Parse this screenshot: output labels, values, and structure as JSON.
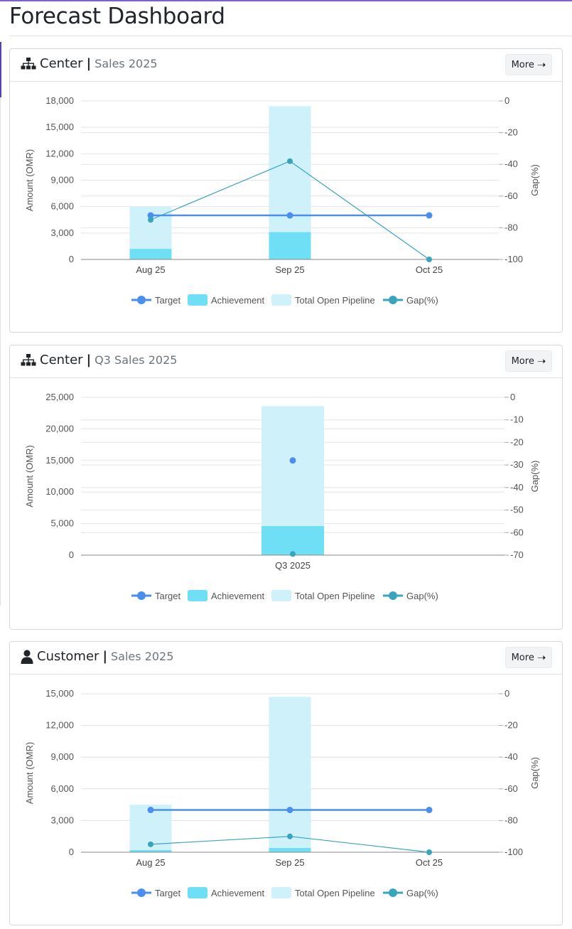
{
  "page": {
    "title": "Forecast Dashboard"
  },
  "legend_labels": [
    "Target",
    "Achievement",
    "Total Open Pipeline",
    "Gap(%)"
  ],
  "more_label": "More",
  "colors": {
    "target": "#4a8ff0",
    "achievement": "#6fdff6",
    "pipeline": "#cff2fa",
    "gap": "#3aa4bd",
    "grid": "#e3e5e8",
    "axis": "#999999"
  },
  "cards": [
    {
      "icon": "sitemap-icon",
      "title": "Center",
      "subtitle": "Sales 2025",
      "chart_data": {
        "type": "bar",
        "categories": [
          "Aug 25",
          "Sep 25",
          "Oct 25"
        ],
        "ylabel": "Amount (OMR)",
        "y2label": "Gap(%)",
        "ylim": [
          0,
          18000
        ],
        "y_ticks": [
          0,
          3000,
          6000,
          9000,
          12000,
          15000,
          18000
        ],
        "y_tick_labels": [
          "0",
          "3,000",
          "6,000",
          "9,000",
          "12,000",
          "15,000",
          "18,000"
        ],
        "y2lim": [
          -100,
          0
        ],
        "y2_ticks": [
          0,
          -20,
          -40,
          -60,
          -80,
          -100
        ],
        "y2_tick_labels": [
          "0",
          "-20",
          "-40",
          "-60",
          "-80",
          "-100"
        ],
        "series": [
          {
            "name": "Target",
            "type": "line",
            "values": [
              5000,
              5000,
              5000
            ]
          },
          {
            "name": "Achievement",
            "type": "bar",
            "values": [
              1200,
              3100,
              0
            ]
          },
          {
            "name": "Total Open Pipeline",
            "type": "bar",
            "stacked": true,
            "values": [
              6000,
              17400,
              0
            ]
          },
          {
            "name": "Gap(%)",
            "type": "line",
            "axis": "right",
            "values": [
              -75,
              -38,
              -100
            ]
          }
        ],
        "legend": "bottom"
      }
    },
    {
      "icon": "sitemap-icon",
      "title": "Center",
      "subtitle": "Q3 Sales 2025",
      "chart_data": {
        "type": "bar",
        "categories": [
          "Q3 2025"
        ],
        "ylabel": "Amount (OMR)",
        "y2label": "Gap(%)",
        "ylim": [
          0,
          25000
        ],
        "y_ticks": [
          0,
          5000,
          10000,
          15000,
          20000,
          25000
        ],
        "y_tick_labels": [
          "0",
          "5,000",
          "10,000",
          "15,000",
          "20,000",
          "25,000"
        ],
        "y2lim": [
          -70,
          0
        ],
        "y2_ticks": [
          0,
          -10,
          -20,
          -30,
          -40,
          -50,
          -60,
          -70
        ],
        "y2_tick_labels": [
          "0",
          "-10",
          "-20",
          "-30",
          "-40",
          "-50",
          "-60",
          "-70"
        ],
        "series": [
          {
            "name": "Target",
            "type": "line",
            "values": [
              15000
            ]
          },
          {
            "name": "Achievement",
            "type": "bar",
            "values": [
              4600
            ]
          },
          {
            "name": "Total Open Pipeline",
            "type": "bar",
            "stacked": true,
            "values": [
              23600
            ]
          },
          {
            "name": "Gap(%)",
            "type": "line",
            "axis": "right",
            "values": [
              -69.5
            ]
          }
        ],
        "legend": "bottom"
      }
    },
    {
      "icon": "user-icon",
      "title": "Customer",
      "subtitle": "Sales 2025",
      "chart_data": {
        "type": "bar",
        "categories": [
          "Aug 25",
          "Sep 25",
          "Oct 25"
        ],
        "ylabel": "Amount (OMR)",
        "y2label": "Gap(%)",
        "ylim": [
          0,
          15000
        ],
        "y_ticks": [
          0,
          3000,
          6000,
          9000,
          12000,
          15000
        ],
        "y_tick_labels": [
          "0",
          "3,000",
          "6,000",
          "9,000",
          "12,000",
          "15,000"
        ],
        "y2lim": [
          -100,
          0
        ],
        "y2_ticks": [
          0,
          -20,
          -40,
          -60,
          -80,
          -100
        ],
        "y2_tick_labels": [
          "0",
          "-20",
          "-40",
          "-60",
          "-80",
          "-100"
        ],
        "series": [
          {
            "name": "Target",
            "type": "line",
            "values": [
              4000,
              4000,
              4000
            ]
          },
          {
            "name": "Achievement",
            "type": "bar",
            "values": [
              200,
              400,
              0
            ]
          },
          {
            "name": "Total Open Pipeline",
            "type": "bar",
            "stacked": true,
            "values": [
              4500,
              14700,
              0
            ]
          },
          {
            "name": "Gap(%)",
            "type": "line",
            "axis": "right",
            "values": [
              -95,
              -90,
              -100
            ]
          }
        ],
        "legend": "bottom"
      }
    }
  ]
}
